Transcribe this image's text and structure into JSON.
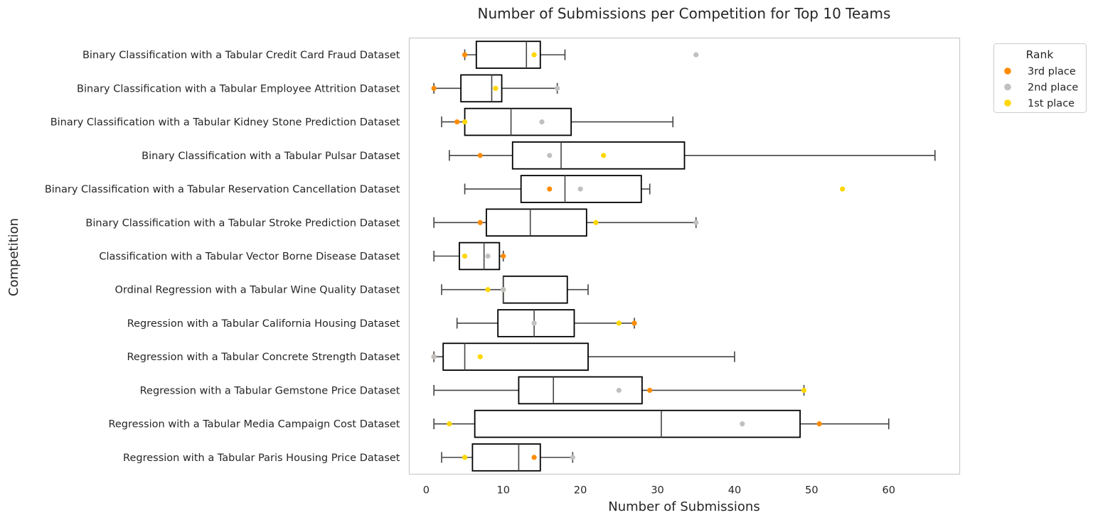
{
  "chart_data": {
    "type": "box",
    "title": "Number of Submissions per Competition for Top 10 Teams",
    "xlabel": "Number of Submissions",
    "ylabel": "Competition",
    "xlim": [
      -2.2,
      69.2
    ],
    "xticks": [
      0,
      10,
      20,
      30,
      40,
      50,
      60
    ],
    "grid": false,
    "legend": {
      "title": "Rank",
      "placement": "outside-top-right",
      "entries": [
        {
          "label": "3rd place",
          "color": "#ff8c00"
        },
        {
          "label": "2nd place",
          "color": "#c0c0c0"
        },
        {
          "label": "1st place",
          "color": "#ffd700"
        }
      ]
    },
    "categories": [
      "Binary Classification with a Tabular Credit Card Fraud Dataset",
      "Binary Classification with a Tabular Employee Attrition Dataset",
      "Binary Classification with a Tabular Kidney Stone Prediction Dataset",
      "Binary Classification with a Tabular Pulsar Dataset",
      "Binary Classification with a Tabular Reservation Cancellation Dataset",
      "Binary Classification with a Tabular Stroke Prediction Dataset",
      "Classification with a Tabular Vector Borne Disease Dataset",
      "Ordinal Regression with a Tabular Wine Quality Dataset",
      "Regression with a Tabular California Housing Dataset",
      "Regression with a Tabular Concrete Strength Dataset",
      "Regression with a Tabular Gemstone Price Dataset",
      "Regression with a Tabular Media Campaign Cost Dataset",
      "Regression with a Tabular Paris Housing Price Dataset"
    ],
    "boxes": [
      {
        "whisker_low": 5,
        "q1": 6.5,
        "median": 13,
        "q3": 14.8,
        "whisker_high": 18
      },
      {
        "whisker_low": 1,
        "q1": 4.5,
        "median": 8.5,
        "q3": 9.8,
        "whisker_high": 17
      },
      {
        "whisker_low": 2,
        "q1": 5,
        "median": 11,
        "q3": 18.8,
        "whisker_high": 32
      },
      {
        "whisker_low": 3,
        "q1": 11.2,
        "median": 17.5,
        "q3": 33.5,
        "whisker_high": 66
      },
      {
        "whisker_low": 5,
        "q1": 12.3,
        "median": 18,
        "q3": 27.9,
        "whisker_high": 29
      },
      {
        "whisker_low": 1,
        "q1": 7.8,
        "median": 13.5,
        "q3": 20.8,
        "whisker_high": 35
      },
      {
        "whisker_low": 1,
        "q1": 4.3,
        "median": 7.5,
        "q3": 9.5,
        "whisker_high": 10
      },
      {
        "whisker_low": 2,
        "q1": 10,
        "median": 10,
        "q3": 18.3,
        "whisker_high": 21
      },
      {
        "whisker_low": 4,
        "q1": 9.3,
        "median": 14,
        "q3": 19.2,
        "whisker_high": 27
      },
      {
        "whisker_low": 1,
        "q1": 2.2,
        "median": 5,
        "q3": 21,
        "whisker_high": 40
      },
      {
        "whisker_low": 1,
        "q1": 12,
        "median": 16.5,
        "q3": 28,
        "whisker_high": 49
      },
      {
        "whisker_low": 1,
        "q1": 6.3,
        "median": 30.5,
        "q3": 48.5,
        "whisker_high": 60
      },
      {
        "whisker_low": 2,
        "q1": 6,
        "median": 12,
        "q3": 14.8,
        "whisker_high": 19
      }
    ],
    "series": [
      {
        "name": "3rd place",
        "color": "#ff8c00",
        "values": [
          5,
          1,
          4,
          7,
          16,
          7,
          10,
          10,
          27,
          1,
          29,
          51,
          14
        ]
      },
      {
        "name": "2nd place",
        "color": "#c0c0c0",
        "values": [
          35,
          17,
          15,
          16,
          20,
          35,
          8,
          10,
          14,
          1,
          25,
          41,
          19
        ]
      },
      {
        "name": "1st place",
        "color": "#ffd700",
        "values": [
          14,
          9,
          5,
          23,
          54,
          22,
          5,
          8,
          25,
          7,
          49,
          3,
          5
        ]
      }
    ]
  }
}
